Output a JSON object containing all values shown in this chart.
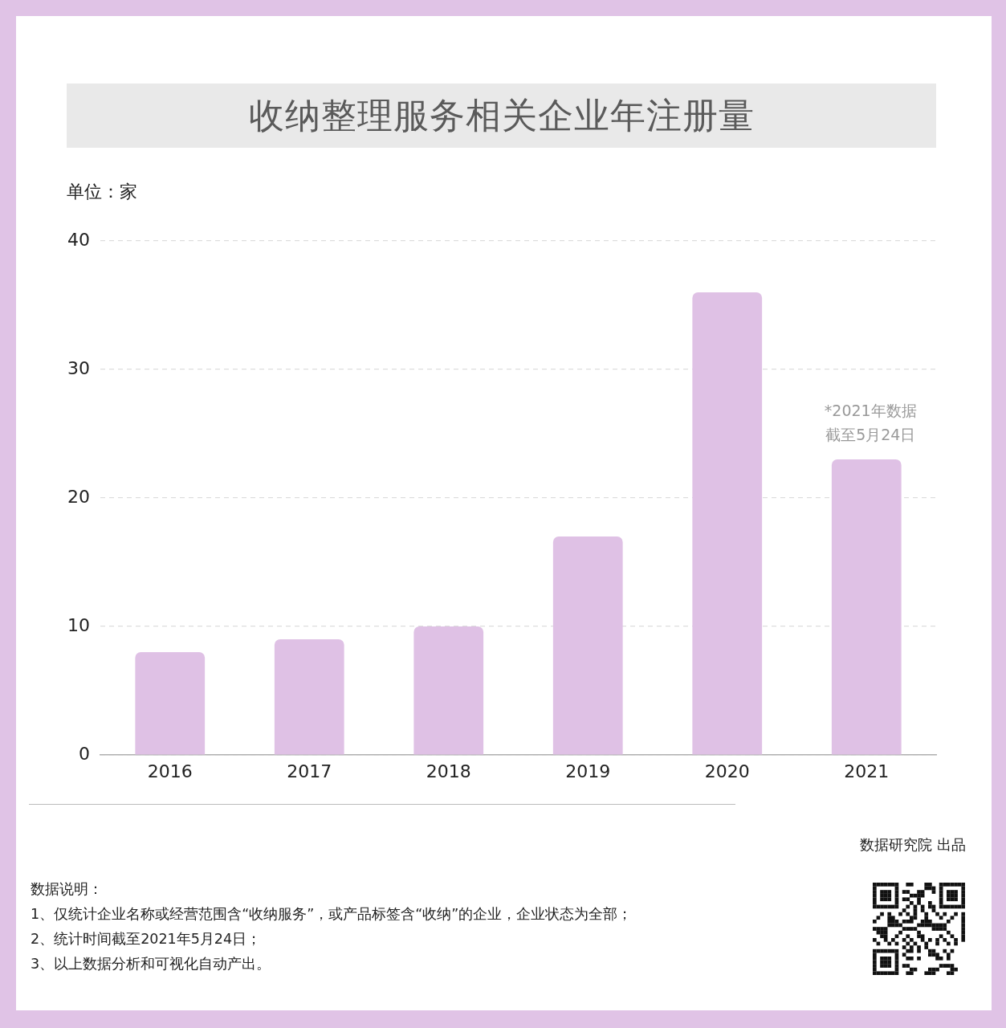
{
  "chart_data": {
    "type": "bar",
    "title": "收纳整理服务相关企业年注册量",
    "ylabel": "单位：家",
    "categories": [
      "2016",
      "2017",
      "2018",
      "2019",
      "2020",
      "2021"
    ],
    "values": [
      8,
      9,
      10,
      17,
      36,
      23
    ],
    "color": "#dfc1e5",
    "ylim": [
      0,
      40
    ],
    "yticks": [
      0,
      10,
      20,
      30,
      40
    ],
    "grid": "y",
    "annotations": [
      {
        "text": "*2021年数据",
        "x": "2021",
        "y": 23
      },
      {
        "text": "截至5月24日",
        "x": "2021",
        "y": 23
      },
      "数据说明：",
      "1、仅统计企业名称或经营范围含“收纳服务”，或产品标签含“收纳”的企业，企业状态为全部；",
      "2、统计时间截至2021年5月24日；",
      "3、以上数据分析和可视化自动产出。",
      "数据研究院 出品"
    ]
  }
}
